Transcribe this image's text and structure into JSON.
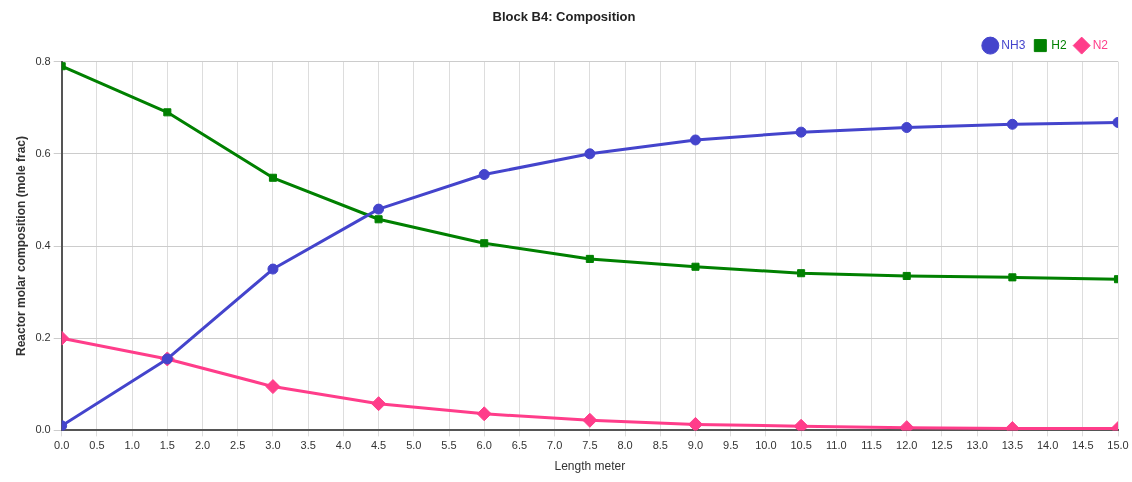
{
  "chart_data": {
    "type": "line",
    "title": "Block B4: Composition",
    "xlabel": "Length meter",
    "ylabel": "Reactor molar composition (mole frac)",
    "x": [
      0,
      1.5,
      3,
      4.5,
      6,
      7.5,
      9,
      10.5,
      12,
      13.5,
      15
    ],
    "series": [
      {
        "name": "NH3",
        "color": "#4444cc",
        "marker": "circle",
        "values": [
          0.01,
          0.155,
          0.35,
          0.48,
          0.555,
          0.6,
          0.63,
          0.647,
          0.657,
          0.664,
          0.668
        ]
      },
      {
        "name": "H2",
        "color": "#008000",
        "marker": "square",
        "values": [
          0.79,
          0.69,
          0.548,
          0.458,
          0.406,
          0.372,
          0.355,
          0.341,
          0.335,
          0.332,
          0.328
        ]
      },
      {
        "name": "N2",
        "color": "#ff3d8a",
        "marker": "diamond",
        "values": [
          0.2,
          0.155,
          0.095,
          0.058,
          0.036,
          0.022,
          0.013,
          0.009,
          0.006,
          0.004,
          0.004
        ]
      }
    ],
    "xlim": [
      0,
      15
    ],
    "xticks": [
      {
        "value": 0,
        "label": "0.0"
      },
      {
        "value": 0.5,
        "label": "0.5"
      },
      {
        "value": 1,
        "label": "1.0"
      },
      {
        "value": 1.5,
        "label": "1.5"
      },
      {
        "value": 2,
        "label": "2.0"
      },
      {
        "value": 2.5,
        "label": "2.5"
      },
      {
        "value": 3,
        "label": "3.0"
      },
      {
        "value": 3.5,
        "label": "3.5"
      },
      {
        "value": 4,
        "label": "4.0"
      },
      {
        "value": 4.5,
        "label": "4.5"
      },
      {
        "value": 5,
        "label": "5.0"
      },
      {
        "value": 5.5,
        "label": "5.5"
      },
      {
        "value": 6,
        "label": "6.0"
      },
      {
        "value": 6.5,
        "label": "6.5"
      },
      {
        "value": 7,
        "label": "7.0"
      },
      {
        "value": 7.5,
        "label": "7.5"
      },
      {
        "value": 8,
        "label": "8.0"
      },
      {
        "value": 8.5,
        "label": "8.5"
      },
      {
        "value": 9,
        "label": "9.0"
      },
      {
        "value": 9.5,
        "label": "9.5"
      },
      {
        "value": 10,
        "label": "10.0"
      },
      {
        "value": 10.5,
        "label": "10.5"
      },
      {
        "value": 11,
        "label": "11.0"
      },
      {
        "value": 11.5,
        "label": "11.5"
      },
      {
        "value": 12,
        "label": "12.0"
      },
      {
        "value": 12.5,
        "label": "12.5"
      },
      {
        "value": 13,
        "label": "13.0"
      },
      {
        "value": 13.5,
        "label": "13.5"
      },
      {
        "value": 14,
        "label": "14.0"
      },
      {
        "value": 14.5,
        "label": "14.5"
      },
      {
        "value": 15,
        "label": "15.0"
      }
    ],
    "ylim": [
      0,
      0.8
    ],
    "yticks": [
      {
        "value": 0,
        "label": "0.0"
      },
      {
        "value": 0.2,
        "label": "0.2"
      },
      {
        "value": 0.4,
        "label": "0.4"
      },
      {
        "value": 0.6,
        "label": "0.6"
      },
      {
        "value": 0.8,
        "label": "0.8"
      }
    ],
    "grid": true,
    "legend": "top right",
    "line_style": "solid"
  }
}
